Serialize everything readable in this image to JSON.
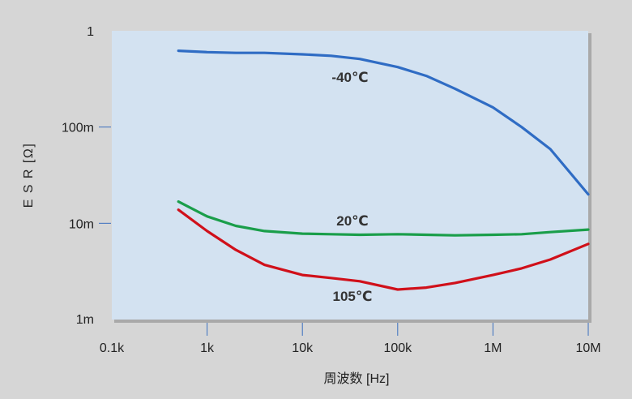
{
  "chart_data": {
    "type": "line",
    "title": "",
    "xlabel": "周波数 [Hz]",
    "ylabel": "E S R [Ω]",
    "x_scale": "log",
    "y_scale": "log",
    "xlim": [
      100,
      10000000
    ],
    "ylim": [
      0.001,
      1
    ],
    "x_ticks": [
      {
        "value": 100,
        "label": "0.1k"
      },
      {
        "value": 1000,
        "label": "1k"
      },
      {
        "value": 10000,
        "label": "10k"
      },
      {
        "value": 100000,
        "label": "100k"
      },
      {
        "value": 1000000,
        "label": "1M"
      },
      {
        "value": 10000000,
        "label": "10M"
      }
    ],
    "y_ticks": [
      {
        "value": 1,
        "label": "1"
      },
      {
        "value": 0.1,
        "label": "100m"
      },
      {
        "value": 0.01,
        "label": "10m"
      },
      {
        "value": 0.001,
        "label": "1m"
      }
    ],
    "grid": false,
    "legend": "none",
    "plot_background": "#d3e2f1",
    "series": [
      {
        "name": "-40℃",
        "color": "#2f6cc4",
        "x": [
          500,
          1000,
          2000,
          4000,
          10000,
          20000,
          40000,
          100000,
          200000,
          400000,
          1000000,
          2000000,
          4000000,
          10000000
        ],
        "y": [
          0.62,
          0.6,
          0.59,
          0.59,
          0.57,
          0.55,
          0.51,
          0.42,
          0.34,
          0.25,
          0.16,
          0.1,
          0.059,
          0.02
        ]
      },
      {
        "name": "20℃",
        "color": "#1a9e4a",
        "x": [
          500,
          1000,
          2000,
          4000,
          10000,
          20000,
          40000,
          100000,
          200000,
          400000,
          1000000,
          2000000,
          4000000,
          10000000
        ],
        "y": [
          0.0168,
          0.0118,
          0.0094,
          0.0083,
          0.0078,
          0.0077,
          0.0076,
          0.0077,
          0.0076,
          0.0075,
          0.0076,
          0.0077,
          0.0081,
          0.0086
        ]
      },
      {
        "name": "105℃",
        "color": "#d0101a",
        "x": [
          500,
          1000,
          2000,
          4000,
          10000,
          20000,
          40000,
          100000,
          200000,
          400000,
          1000000,
          2000000,
          4000000,
          10000000
        ],
        "y": [
          0.0138,
          0.0083,
          0.0053,
          0.0037,
          0.0029,
          0.0027,
          0.0025,
          0.00205,
          0.00215,
          0.0024,
          0.0029,
          0.0034,
          0.0042,
          0.0061
        ]
      }
    ]
  }
}
